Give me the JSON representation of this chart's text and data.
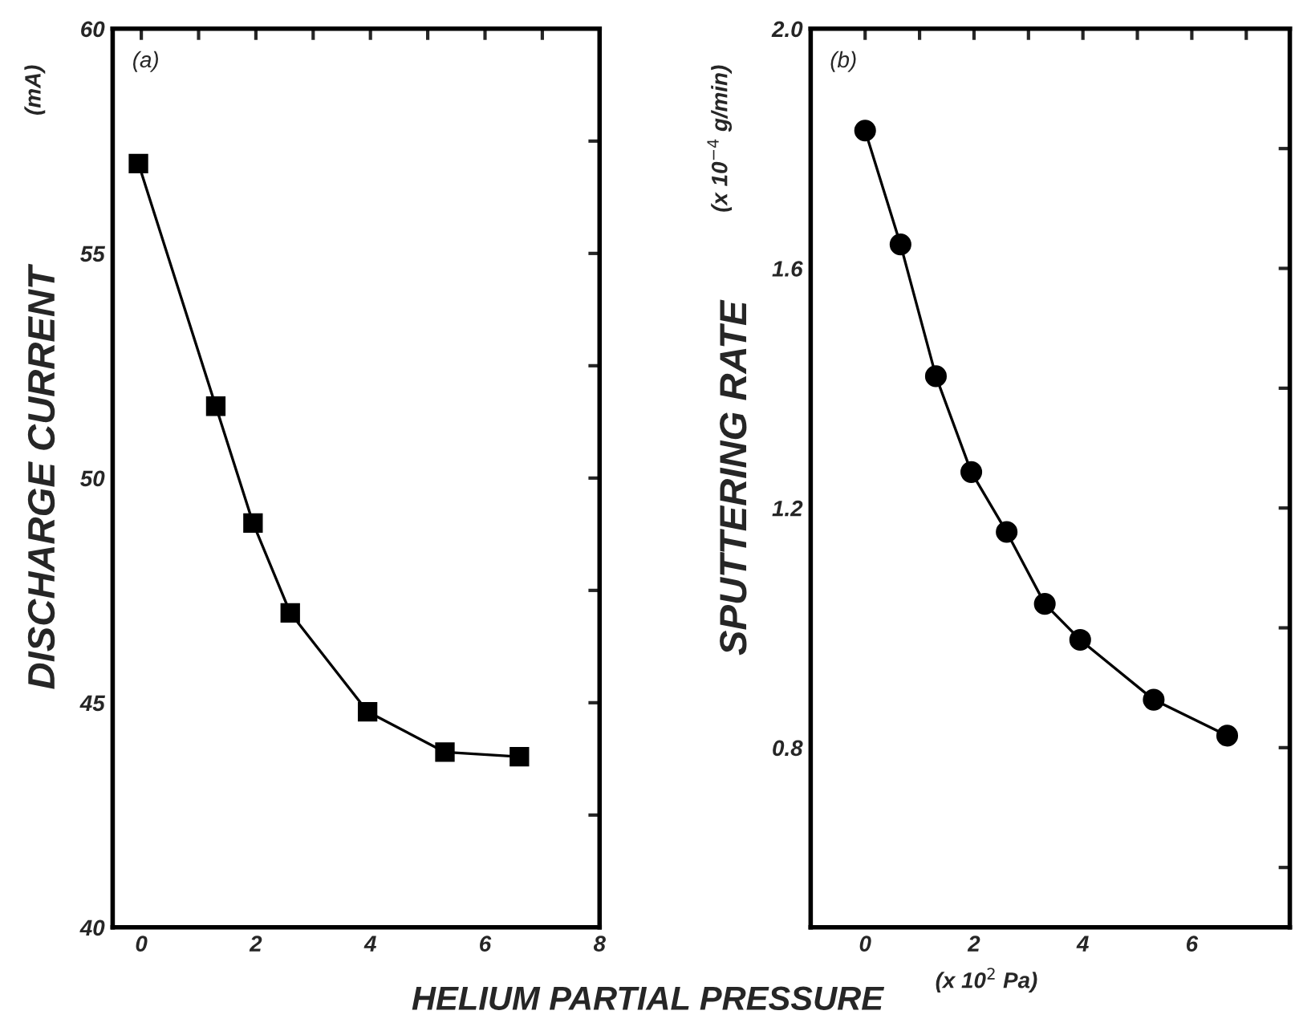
{
  "chart_data": [
    {
      "type": "line",
      "ylabel": "DISCHARGE CURRENT",
      "xlabel": "HELIUM PARTIAL PRESSURE",
      "annotations": [
        "(a)",
        "(mA)"
      ],
      "marker": "square",
      "line_style": "solid",
      "grid": false,
      "legend": false,
      "xlim": [
        -0.5,
        8
      ],
      "xticks": [
        0,
        {
          "value": 1,
          "label": null
        },
        2,
        {
          "value": 3,
          "label": null
        },
        4,
        {
          "value": 5,
          "label": null
        },
        6,
        {
          "value": 7,
          "label": null
        },
        8
      ],
      "ylim": [
        40,
        60
      ],
      "yticks": [
        40,
        {
          "value": 42.5,
          "label": null
        },
        45,
        {
          "value": 47.5,
          "label": null
        },
        50,
        {
          "value": 52.5,
          "label": null
        },
        55,
        {
          "value": 57.5,
          "label": null
        },
        60
      ],
      "series": [
        {
          "color": "#000000",
          "x": [
            -0.05,
            1.3,
            1.95,
            2.6,
            3.95,
            5.3,
            6.6
          ],
          "values": [
            57.0,
            51.6,
            49.0,
            47.0,
            44.8,
            43.9,
            43.8
          ]
        }
      ]
    },
    {
      "type": "line",
      "ylabel": "SPUTTERING RATE",
      "annotations": [
        "(b)",
        "(x 10$^{−4}$ g/min)",
        "(x 10$^{2}$ Pa)"
      ],
      "marker": "circle",
      "line_style": "solid",
      "grid": false,
      "legend": false,
      "xlim": [
        -1,
        7.8
      ],
      "xticks": [
        0,
        {
          "value": 1,
          "label": null
        },
        2,
        {
          "value": 3,
          "label": null
        },
        4,
        {
          "value": 5,
          "label": null
        },
        6,
        {
          "value": 7,
          "label": null
        }
      ],
      "ylim": [
        0.5,
        2.0
      ],
      "yticks": [
        {
          "value": 0.6,
          "label": null
        },
        0.8,
        {
          "value": 1.0,
          "label": null
        },
        1.2,
        {
          "value": 1.4,
          "label": null
        },
        1.6,
        {
          "value": 1.8,
          "label": null
        },
        {
          "value": 2.0,
          "label": "2.0"
        }
      ],
      "series": [
        {
          "color": "#000000",
          "x": [
            0,
            0.65,
            1.3,
            1.95,
            2.6,
            3.3,
            3.95,
            5.3,
            6.65
          ],
          "values": [
            1.83,
            1.64,
            1.42,
            1.26,
            1.16,
            1.04,
            0.98,
            0.88,
            0.82
          ]
        }
      ]
    }
  ]
}
